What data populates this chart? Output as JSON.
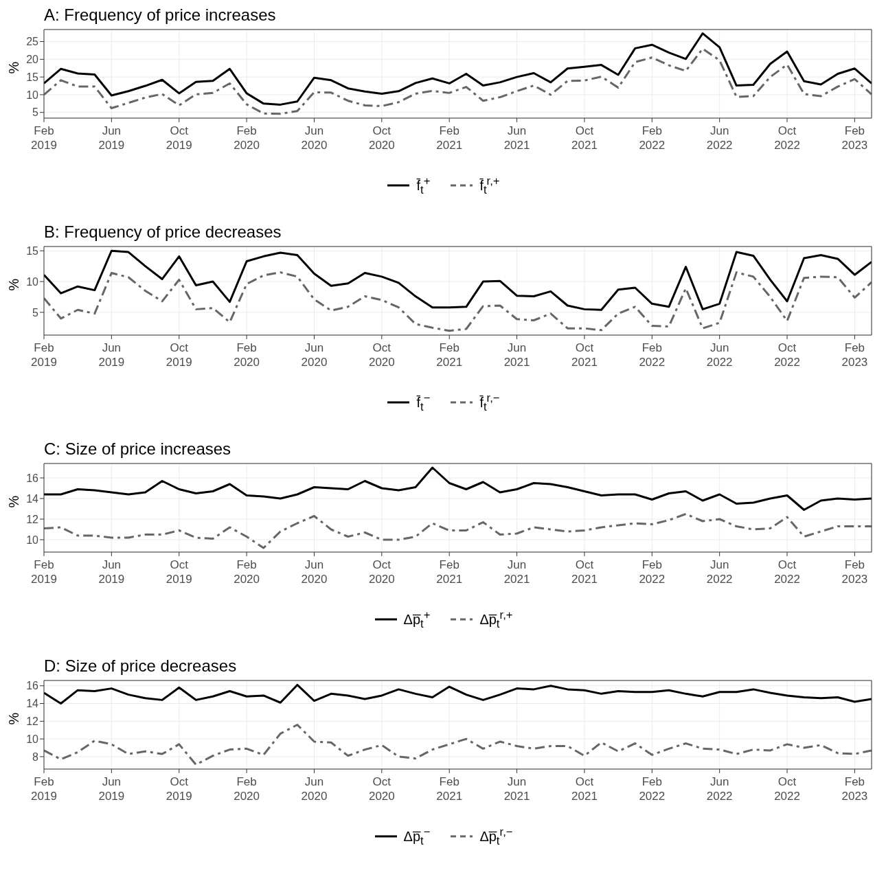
{
  "chart_data": [
    {
      "type": "line",
      "title": "A: Frequency of price increases",
      "ylabel": "%",
      "legend": "bottom",
      "grid": true,
      "marker": "none",
      "x": [
        "2019-02",
        "2019-03",
        "2019-04",
        "2019-05",
        "2019-06",
        "2019-07",
        "2019-08",
        "2019-09",
        "2019-10",
        "2019-11",
        "2019-12",
        "2020-01",
        "2020-02",
        "2020-03",
        "2020-04",
        "2020-05",
        "2020-06",
        "2020-07",
        "2020-08",
        "2020-09",
        "2020-10",
        "2020-11",
        "2020-12",
        "2021-01",
        "2021-02",
        "2021-03",
        "2021-04",
        "2021-05",
        "2021-06",
        "2021-07",
        "2021-08",
        "2021-09",
        "2021-10",
        "2021-11",
        "2021-12",
        "2022-01",
        "2022-02",
        "2022-03",
        "2022-04",
        "2022-05",
        "2022-06",
        "2022-07",
        "2022-08",
        "2022-09",
        "2022-10",
        "2022-11",
        "2022-12",
        "2023-01",
        "2023-02",
        "2023-03"
      ],
      "xlim": [
        "2019-02",
        "2023-03"
      ],
      "xticks": [
        {
          "value": "2019-02",
          "label": "Feb\n2019"
        },
        {
          "value": "2019-06",
          "label": "Jun\n2019"
        },
        {
          "value": "2019-10",
          "label": "Oct\n2019"
        },
        {
          "value": "2020-02",
          "label": "Feb\n2020"
        },
        {
          "value": "2020-06",
          "label": "Jun\n2020"
        },
        {
          "value": "2020-10",
          "label": "Oct\n2020"
        },
        {
          "value": "2021-02",
          "label": "Feb\n2021"
        },
        {
          "value": "2021-06",
          "label": "Jun\n2021"
        },
        {
          "value": "2021-10",
          "label": "Oct\n2021"
        },
        {
          "value": "2022-02",
          "label": "Feb\n2022"
        },
        {
          "value": "2022-06",
          "label": "Jun\n2022"
        },
        {
          "value": "2022-10",
          "label": "Oct\n2022"
        },
        {
          "value": "2023-02",
          "label": "Feb\n2023"
        }
      ],
      "ylim": [
        3.4,
        28.4
      ],
      "yticks": [
        5,
        10,
        15,
        20,
        25
      ],
      "series": [
        {
          "name": "f̄$_{t}$$^{+}$",
          "color": "#000000",
          "line_style": "solid",
          "values": [
            13.2,
            17.3,
            16.0,
            15.7,
            9.8,
            11.0,
            12.5,
            14.2,
            10.4,
            13.6,
            13.9,
            17.3,
            10.4,
            7.5,
            7.2,
            8.1,
            14.8,
            14.1,
            11.8,
            10.9,
            10.3,
            11.0,
            13.3,
            14.6,
            13.2,
            15.9,
            12.6,
            13.5,
            15.0,
            16.1,
            13.5,
            17.4,
            17.9,
            18.4,
            15.6,
            23.1,
            24.1,
            21.9,
            20.1,
            27.3,
            23.4,
            12.6,
            12.8,
            18.7,
            22.2,
            13.8,
            12.9,
            15.9,
            17.4,
            13.2
          ]
        },
        {
          "name": "f̄$_{t}$$^{r,+}$",
          "color": "#666666",
          "line_style": "dashed",
          "values": [
            10.0,
            14.1,
            12.3,
            12.3,
            6.2,
            7.7,
            9.2,
            10.2,
            7.0,
            10.1,
            10.5,
            13.2,
            7.3,
            4.7,
            4.6,
            5.4,
            10.7,
            10.6,
            8.3,
            7.0,
            6.8,
            7.9,
            10.3,
            11.1,
            10.5,
            12.2,
            8.3,
            9.3,
            11.0,
            12.6,
            10.0,
            13.9,
            14.0,
            15.1,
            12.0,
            19.2,
            20.5,
            18.3,
            16.7,
            23.0,
            19.7,
            9.4,
            9.6,
            15.0,
            18.5,
            10.2,
            9.6,
            12.3,
            14.4,
            10.1
          ]
        }
      ]
    },
    {
      "type": "line",
      "title": "B: Frequency of price decreases",
      "ylabel": "%",
      "legend": "bottom",
      "grid": true,
      "marker": "none",
      "x": [
        "2019-02",
        "2019-03",
        "2019-04",
        "2019-05",
        "2019-06",
        "2019-07",
        "2019-08",
        "2019-09",
        "2019-10",
        "2019-11",
        "2019-12",
        "2020-01",
        "2020-02",
        "2020-03",
        "2020-04",
        "2020-05",
        "2020-06",
        "2020-07",
        "2020-08",
        "2020-09",
        "2020-10",
        "2020-11",
        "2020-12",
        "2021-01",
        "2021-02",
        "2021-03",
        "2021-04",
        "2021-05",
        "2021-06",
        "2021-07",
        "2021-08",
        "2021-09",
        "2021-10",
        "2021-11",
        "2021-12",
        "2022-01",
        "2022-02",
        "2022-03",
        "2022-04",
        "2022-05",
        "2022-06",
        "2022-07",
        "2022-08",
        "2022-09",
        "2022-10",
        "2022-11",
        "2022-12",
        "2023-01",
        "2023-02",
        "2023-03"
      ],
      "xlim": [
        "2019-02",
        "2023-03"
      ],
      "xticks": [
        {
          "value": "2019-02",
          "label": "Feb\n2019"
        },
        {
          "value": "2019-06",
          "label": "Jun\n2019"
        },
        {
          "value": "2019-10",
          "label": "Oct\n2019"
        },
        {
          "value": "2020-02",
          "label": "Feb\n2020"
        },
        {
          "value": "2020-06",
          "label": "Jun\n2020"
        },
        {
          "value": "2020-10",
          "label": "Oct\n2020"
        },
        {
          "value": "2021-02",
          "label": "Feb\n2021"
        },
        {
          "value": "2021-06",
          "label": "Jun\n2021"
        },
        {
          "value": "2021-10",
          "label": "Oct\n2021"
        },
        {
          "value": "2022-02",
          "label": "Feb\n2022"
        },
        {
          "value": "2022-06",
          "label": "Jun\n2022"
        },
        {
          "value": "2022-10",
          "label": "Oct\n2022"
        },
        {
          "value": "2023-02",
          "label": "Feb\n2023"
        }
      ],
      "ylim": [
        1.3,
        15.7
      ],
      "yticks": [
        5,
        10,
        15
      ],
      "series": [
        {
          "name": "f̄$_{t}$$^{−}$",
          "color": "#000000",
          "line_style": "solid",
          "values": [
            11.1,
            8.1,
            9.2,
            8.6,
            15.0,
            14.8,
            12.5,
            10.4,
            14.1,
            9.4,
            10.0,
            6.7,
            13.3,
            14.1,
            14.7,
            14.3,
            11.3,
            9.3,
            9.7,
            11.4,
            10.8,
            9.8,
            7.6,
            5.8,
            5.8,
            5.9,
            10.0,
            10.1,
            7.7,
            7.6,
            8.4,
            6.1,
            5.5,
            5.4,
            8.7,
            9.0,
            6.4,
            5.9,
            12.4,
            5.5,
            6.4,
            14.8,
            14.2,
            10.3,
            6.8,
            13.8,
            14.3,
            13.7,
            11.1,
            13.2
          ]
        },
        {
          "name": "f̄$_{t}$$^{r,−}$",
          "color": "#666666",
          "line_style": "dashed",
          "values": [
            7.3,
            4.0,
            5.4,
            4.8,
            11.4,
            10.7,
            8.5,
            6.8,
            10.3,
            5.5,
            5.7,
            3.4,
            9.6,
            11.0,
            11.5,
            10.8,
            7.1,
            5.3,
            5.9,
            7.6,
            7.0,
            5.8,
            3.1,
            2.5,
            2.0,
            2.3,
            6.0,
            6.1,
            3.9,
            3.7,
            4.8,
            2.4,
            2.4,
            2.1,
            4.8,
            5.9,
            2.8,
            2.7,
            8.9,
            2.4,
            3.3,
            11.5,
            10.8,
            7.5,
            3.6,
            10.6,
            10.8,
            10.7,
            7.4,
            9.9
          ]
        }
      ]
    },
    {
      "type": "line",
      "title": "C: Size of price increases",
      "ylabel": "%",
      "legend": "bottom",
      "grid": true,
      "marker": "none",
      "x": [
        "2019-02",
        "2019-03",
        "2019-04",
        "2019-05",
        "2019-06",
        "2019-07",
        "2019-08",
        "2019-09",
        "2019-10",
        "2019-11",
        "2019-12",
        "2020-01",
        "2020-02",
        "2020-03",
        "2020-04",
        "2020-05",
        "2020-06",
        "2020-07",
        "2020-08",
        "2020-09",
        "2020-10",
        "2020-11",
        "2020-12",
        "2021-01",
        "2021-02",
        "2021-03",
        "2021-04",
        "2021-05",
        "2021-06",
        "2021-07",
        "2021-08",
        "2021-09",
        "2021-10",
        "2021-11",
        "2021-12",
        "2022-01",
        "2022-02",
        "2022-03",
        "2022-04",
        "2022-05",
        "2022-06",
        "2022-07",
        "2022-08",
        "2022-09",
        "2022-10",
        "2022-11",
        "2022-12",
        "2023-01",
        "2023-02",
        "2023-03"
      ],
      "xlim": [
        "2019-02",
        "2023-03"
      ],
      "xticks": [
        {
          "value": "2019-02",
          "label": "Feb\n2019"
        },
        {
          "value": "2019-06",
          "label": "Jun\n2019"
        },
        {
          "value": "2019-10",
          "label": "Oct\n2019"
        },
        {
          "value": "2020-02",
          "label": "Feb\n2020"
        },
        {
          "value": "2020-06",
          "label": "Jun\n2020"
        },
        {
          "value": "2020-10",
          "label": "Oct\n2020"
        },
        {
          "value": "2021-02",
          "label": "Feb\n2021"
        },
        {
          "value": "2021-06",
          "label": "Jun\n2021"
        },
        {
          "value": "2021-10",
          "label": "Oct\n2021"
        },
        {
          "value": "2022-02",
          "label": "Feb\n2022"
        },
        {
          "value": "2022-06",
          "label": "Jun\n2022"
        },
        {
          "value": "2022-10",
          "label": "Oct\n2022"
        },
        {
          "value": "2023-02",
          "label": "Feb\n2023"
        }
      ],
      "ylim": [
        8.8,
        17.4
      ],
      "yticks": [
        10,
        12,
        14,
        16
      ],
      "series": [
        {
          "name": "Δp̅$_{t}$$^{+}$",
          "color": "#000000",
          "line_style": "solid",
          "values": [
            14.4,
            14.4,
            14.9,
            14.8,
            14.6,
            14.4,
            14.6,
            15.7,
            14.9,
            14.5,
            14.7,
            15.4,
            14.3,
            14.2,
            14.0,
            14.4,
            15.1,
            15.0,
            14.9,
            15.7,
            15.0,
            14.8,
            15.1,
            17.0,
            15.5,
            14.9,
            15.6,
            14.6,
            14.9,
            15.5,
            15.4,
            15.1,
            14.7,
            14.3,
            14.4,
            14.4,
            13.9,
            14.5,
            14.7,
            13.8,
            14.4,
            13.5,
            13.6,
            14.0,
            14.3,
            12.9,
            13.8,
            14.0,
            13.9,
            14.0
          ]
        },
        {
          "name": "Δp̅$_{t}$$^{r,+}$",
          "color": "#666666",
          "line_style": "dashed",
          "values": [
            11.1,
            11.2,
            10.4,
            10.4,
            10.2,
            10.2,
            10.5,
            10.5,
            10.9,
            10.2,
            10.1,
            11.2,
            10.3,
            9.2,
            10.8,
            11.6,
            12.3,
            11.0,
            10.3,
            10.7,
            10.0,
            10.0,
            10.3,
            11.6,
            10.9,
            10.9,
            11.7,
            10.5,
            10.6,
            11.2,
            11.0,
            10.8,
            10.9,
            11.2,
            11.4,
            11.6,
            11.5,
            11.9,
            12.5,
            11.8,
            12.0,
            11.3,
            11.0,
            11.1,
            12.2,
            10.3,
            10.8,
            11.3,
            11.3,
            11.3
          ]
        }
      ]
    },
    {
      "type": "line",
      "title": "D: Size of price decreases",
      "ylabel": "%",
      "legend": "bottom",
      "grid": true,
      "marker": "none",
      "x": [
        "2019-02",
        "2019-03",
        "2019-04",
        "2019-05",
        "2019-06",
        "2019-07",
        "2019-08",
        "2019-09",
        "2019-10",
        "2019-11",
        "2019-12",
        "2020-01",
        "2020-02",
        "2020-03",
        "2020-04",
        "2020-05",
        "2020-06",
        "2020-07",
        "2020-08",
        "2020-09",
        "2020-10",
        "2020-11",
        "2020-12",
        "2021-01",
        "2021-02",
        "2021-03",
        "2021-04",
        "2021-05",
        "2021-06",
        "2021-07",
        "2021-08",
        "2021-09",
        "2021-10",
        "2021-11",
        "2021-12",
        "2022-01",
        "2022-02",
        "2022-03",
        "2022-04",
        "2022-05",
        "2022-06",
        "2022-07",
        "2022-08",
        "2022-09",
        "2022-10",
        "2022-11",
        "2022-12",
        "2023-01",
        "2023-02",
        "2023-03"
      ],
      "xlim": [
        "2019-02",
        "2023-03"
      ],
      "xticks": [
        {
          "value": "2019-02",
          "label": "Feb\n2019"
        },
        {
          "value": "2019-06",
          "label": "Jun\n2019"
        },
        {
          "value": "2019-10",
          "label": "Oct\n2019"
        },
        {
          "value": "2020-02",
          "label": "Feb\n2020"
        },
        {
          "value": "2020-06",
          "label": "Jun\n2020"
        },
        {
          "value": "2020-10",
          "label": "Oct\n2020"
        },
        {
          "value": "2021-02",
          "label": "Feb\n2021"
        },
        {
          "value": "2021-06",
          "label": "Jun\n2021"
        },
        {
          "value": "2021-10",
          "label": "Oct\n2021"
        },
        {
          "value": "2022-02",
          "label": "Feb\n2022"
        },
        {
          "value": "2022-06",
          "label": "Jun\n2022"
        },
        {
          "value": "2022-10",
          "label": "Oct\n2022"
        },
        {
          "value": "2023-02",
          "label": "Feb\n2023"
        }
      ],
      "ylim": [
        6.6,
        16.6
      ],
      "yticks": [
        8,
        10,
        12,
        14,
        16
      ],
      "series": [
        {
          "name": "Δp̅$_{t}$$^{−}$",
          "color": "#000000",
          "line_style": "solid",
          "values": [
            15.2,
            14.0,
            15.5,
            15.4,
            15.7,
            15.0,
            14.6,
            14.4,
            15.8,
            14.4,
            14.8,
            15.4,
            14.8,
            14.9,
            14.1,
            16.1,
            14.3,
            15.1,
            14.9,
            14.5,
            14.9,
            15.6,
            15.1,
            14.7,
            15.9,
            15.0,
            14.4,
            15.0,
            15.7,
            15.6,
            16.0,
            15.6,
            15.5,
            15.1,
            15.4,
            15.3,
            15.3,
            15.5,
            15.1,
            14.8,
            15.3,
            15.3,
            15.6,
            15.2,
            14.9,
            14.7,
            14.6,
            14.7,
            14.2,
            14.5
          ]
        },
        {
          "name": "Δp̅$_{t}$$^{r,−}$",
          "color": "#666666",
          "line_style": "dashed",
          "values": [
            8.7,
            7.7,
            8.5,
            9.8,
            9.4,
            8.3,
            8.6,
            8.3,
            9.4,
            7.1,
            8.1,
            8.8,
            8.9,
            8.2,
            10.6,
            11.6,
            9.7,
            9.6,
            8.1,
            8.8,
            9.3,
            8.0,
            7.8,
            8.8,
            9.4,
            10.0,
            8.9,
            9.7,
            9.2,
            8.9,
            9.2,
            9.2,
            8.1,
            9.6,
            8.6,
            9.5,
            8.2,
            8.9,
            9.5,
            8.9,
            8.8,
            8.3,
            8.8,
            8.7,
            9.4,
            9.0,
            9.3,
            8.4,
            8.3,
            8.7
          ]
        }
      ]
    }
  ]
}
